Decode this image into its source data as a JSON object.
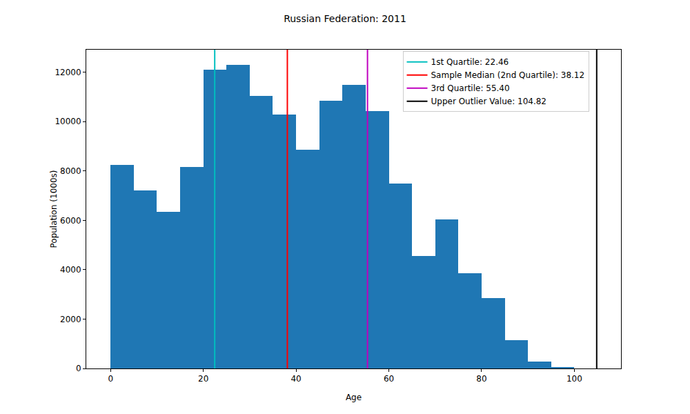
{
  "chart_data": {
    "type": "histogram",
    "title": "Russian Federation: 2011",
    "x_label": "Age",
    "y_label": "Population (1000s)",
    "bins": [
      0,
      5,
      10,
      15,
      20,
      25,
      30,
      35,
      40,
      45,
      50,
      55,
      60,
      65,
      70,
      75,
      80,
      85,
      90,
      95,
      100
    ],
    "values": [
      8250,
      7200,
      6350,
      8150,
      12100,
      12300,
      11050,
      10300,
      8850,
      10850,
      11480,
      10430,
      7500,
      4570,
      6050,
      3870,
      2850,
      1150,
      270,
      60
    ],
    "color": "#1f77b4",
    "series": [
      {
        "name": "1st Quartile: 22.46",
        "type": "vline",
        "value": 22.46,
        "color": "#00bfbf"
      },
      {
        "name": "Sample Median (2nd Quartile): 38.12",
        "type": "vline",
        "value": 38.12,
        "color": "#ff0000"
      },
      {
        "name": "3rd Quartile: 55.40",
        "type": "vline",
        "value": 55.4,
        "color": "#bf00bf"
      },
      {
        "name": "Upper Outlier Value: 104.82",
        "type": "vline",
        "value": 104.82,
        "color": "#000000"
      }
    ],
    "xlim": [
      -5.24,
      110.06
    ],
    "xticks": [
      0,
      20,
      40,
      60,
      80,
      100
    ],
    "ylim": [
      0,
      12915
    ],
    "yticks": [
      0,
      2000,
      4000,
      6000,
      8000,
      10000,
      12000
    ],
    "grid": false,
    "legend": "upper right"
  }
}
